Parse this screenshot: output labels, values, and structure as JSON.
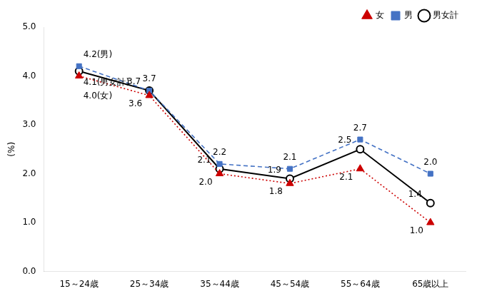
{
  "chart_data": {
    "type": "line",
    "ylabel": "(%)",
    "categories": [
      "15～24歳",
      "25～34歳",
      "35～44歳",
      "45～54歳",
      "55～64歳",
      "65歳以上"
    ],
    "series": [
      {
        "name": "男女計",
        "color": "#000000",
        "marker": "circle",
        "line_style": "solid",
        "values": [
          4.1,
          3.7,
          2.1,
          1.9,
          2.5,
          1.4
        ],
        "value_labels": [
          "4.1(男女計)",
          "3.7",
          "2.1",
          "1.9",
          "2.5",
          "1.4"
        ]
      },
      {
        "name": "男",
        "color": "#4472c4",
        "marker": "square",
        "line_style": "dashed",
        "values": [
          4.2,
          3.7,
          2.2,
          2.1,
          2.7,
          2.0
        ],
        "value_labels": [
          "4.2(男)",
          "3.7",
          "2.2",
          "2.1",
          "2.7",
          "2.0"
        ]
      },
      {
        "name": "女",
        "color": "#cc0000",
        "marker": "triangle",
        "line_style": "dotted",
        "values": [
          4.0,
          3.6,
          2.0,
          1.8,
          2.1,
          1.0
        ],
        "value_labels": [
          "4.0(女)",
          "3.6",
          "2.0",
          "1.8",
          "2.1",
          "1.0"
        ]
      }
    ],
    "ylim": [
      0.0,
      5.0
    ],
    "yticks": [
      {
        "value": 0.0,
        "label": "0.0"
      },
      {
        "value": 1.0,
        "label": "1.0"
      },
      {
        "value": 2.0,
        "label": "2.0"
      },
      {
        "value": 3.0,
        "label": "3.0"
      },
      {
        "value": 4.0,
        "label": "4.0"
      },
      {
        "value": 5.0,
        "label": "5.0"
      }
    ],
    "grid": false,
    "legend": "upper right",
    "data_labels": true
  }
}
